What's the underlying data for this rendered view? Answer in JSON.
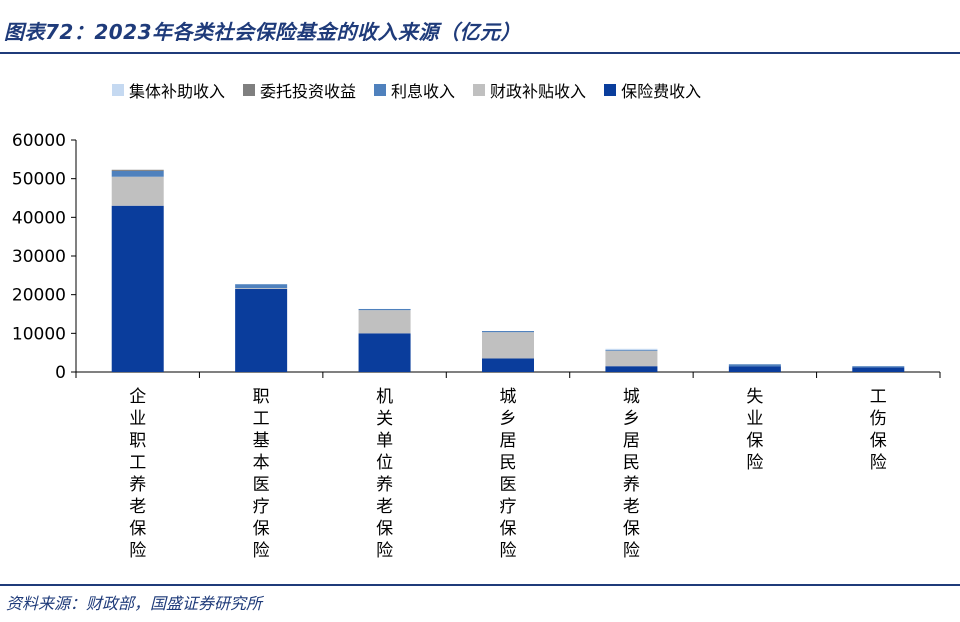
{
  "title": "图表72：2023年各类社会保险基金的收入来源（亿元）",
  "source": "资料来源：财政部，国盛证券研究所",
  "chart_data": {
    "type": "bar",
    "stacked": true,
    "categories": [
      "企业职工养老保险",
      "职工基本医疗保险",
      "机关单位养老保险",
      "城乡居民医疗保险",
      "城乡居民养老保险",
      "失业保险",
      "工伤保险"
    ],
    "series": [
      {
        "name": "保险费收入",
        "color": "#0a3d9c",
        "values": [
          43000,
          21500,
          10000,
          3500,
          1500,
          1500,
          1200
        ]
      },
      {
        "name": "财政补贴收入",
        "color": "#c0c0c0",
        "values": [
          7500,
          200,
          6000,
          6800,
          4000,
          0,
          0
        ]
      },
      {
        "name": "利息收入",
        "color": "#4f81bd",
        "values": [
          1500,
          1000,
          300,
          300,
          200,
          500,
          300
        ]
      },
      {
        "name": "委托投资收益",
        "color": "#7f7f7f",
        "values": [
          300,
          0,
          0,
          0,
          0,
          0,
          0
        ]
      },
      {
        "name": "集体补助收入",
        "color": "#c5d9f1",
        "values": [
          0,
          0,
          0,
          0,
          300,
          0,
          0
        ]
      }
    ],
    "legend_order": [
      "集体补助收入",
      "委托投资收益",
      "利息收入",
      "财政补贴收入",
      "保险费收入"
    ],
    "yticks": [
      "0",
      "10000",
      "20000",
      "30000",
      "40000",
      "50000",
      "60000"
    ],
    "ylim": [
      0,
      60000
    ],
    "legend_position": "top",
    "grid": false
  }
}
